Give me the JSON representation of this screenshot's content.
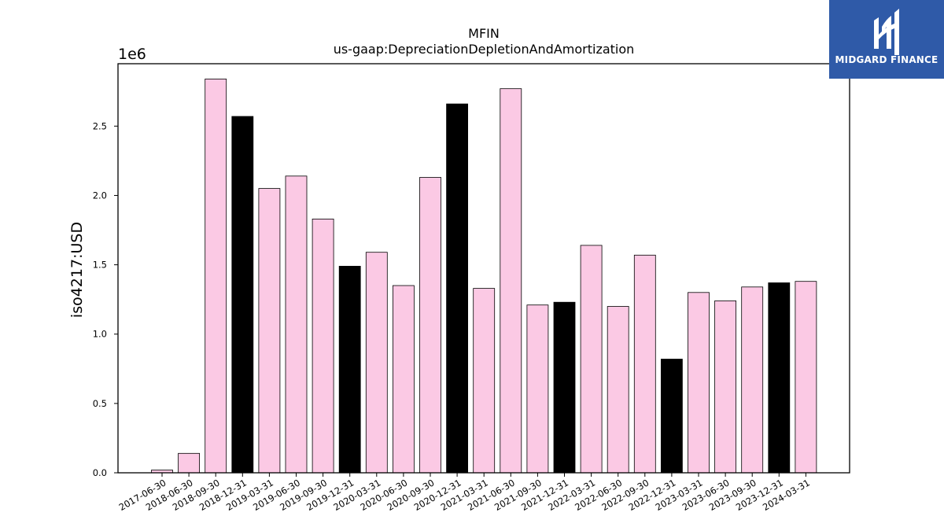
{
  "chart_data": {
    "type": "bar",
    "title": "MFIN",
    "subtitle": "us-gaap:DepreciationDepletionAndAmortization",
    "ylabel": "iso4217:USD",
    "y_scale_label": "1e6",
    "ylim": [
      0,
      2.95
    ],
    "y_ticks": [
      "0.0",
      "0.5",
      "1.0",
      "1.5",
      "2.0",
      "2.5"
    ],
    "categories": [
      "2017-06-30",
      "2018-06-30",
      "2018-09-30",
      "2018-12-31",
      "2019-03-31",
      "2019-06-30",
      "2019-09-30",
      "2019-12-31",
      "2020-03-31",
      "2020-06-30",
      "2020-09-30",
      "2020-12-31",
      "2021-03-31",
      "2021-06-30",
      "2021-09-30",
      "2021-12-31",
      "2022-03-31",
      "2022-06-30",
      "2022-09-30",
      "2022-12-31",
      "2023-03-31",
      "2023-06-30",
      "2023-09-30",
      "2023-12-31",
      "2024-03-31"
    ],
    "values": [
      0.02,
      0.14,
      2.84,
      2.57,
      2.05,
      2.14,
      1.83,
      1.49,
      1.59,
      1.35,
      2.13,
      2.66,
      1.33,
      2.77,
      1.21,
      1.23,
      1.64,
      1.2,
      1.57,
      0.82,
      1.3,
      1.24,
      1.34,
      1.37,
      1.38
    ],
    "colors": [
      "#fbc9e4",
      "#fbc9e4",
      "#fbc9e4",
      "#000000",
      "#fbc9e4",
      "#fbc9e4",
      "#fbc9e4",
      "#000000",
      "#fbc9e4",
      "#fbc9e4",
      "#fbc9e4",
      "#000000",
      "#fbc9e4",
      "#fbc9e4",
      "#fbc9e4",
      "#000000",
      "#fbc9e4",
      "#fbc9e4",
      "#fbc9e4",
      "#000000",
      "#fbc9e4",
      "#fbc9e4",
      "#fbc9e4",
      "#000000",
      "#fbc9e4"
    ],
    "grid": false,
    "legend": "none"
  },
  "logo": {
    "text": "MIDGARD FINANCE",
    "background": "#2f5aa8"
  }
}
